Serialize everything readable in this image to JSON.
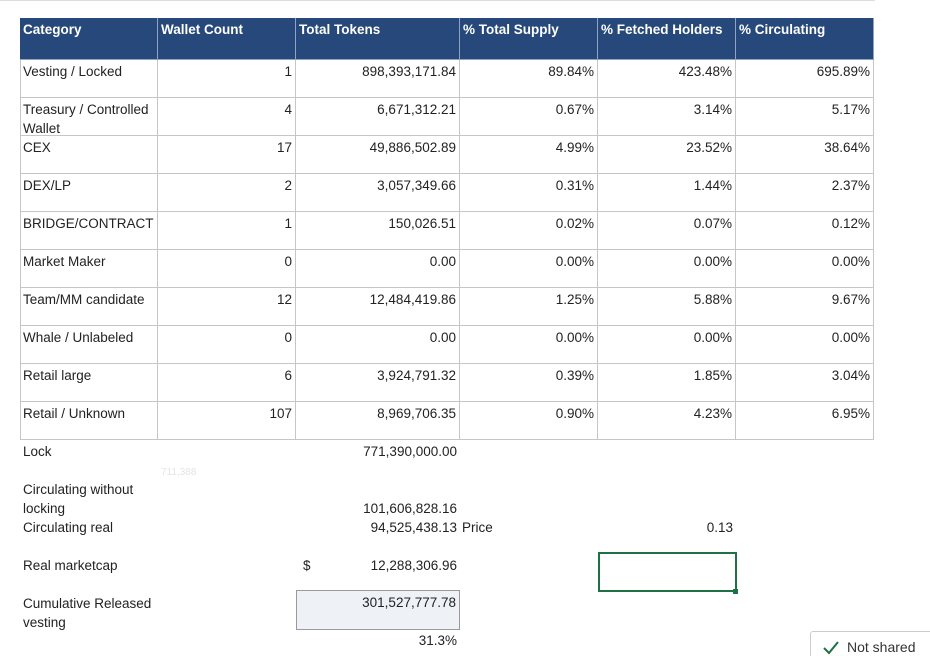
{
  "table": {
    "header": [
      "Category",
      "Wallet Count",
      "Total Tokens",
      "% Total Supply",
      "% Fetched Holders",
      "% Circulating"
    ],
    "rows": [
      [
        "Vesting / Locked",
        "1",
        "898,393,171.84",
        "89.84%",
        "423.48%",
        "695.89%"
      ],
      [
        "Treasury / Controlled Wallet",
        "4",
        "6,671,312.21",
        "0.67%",
        "3.14%",
        "5.17%"
      ],
      [
        "CEX",
        "17",
        "49,886,502.89",
        "4.99%",
        "23.52%",
        "38.64%"
      ],
      [
        "DEX/LP",
        "2",
        "3,057,349.66",
        "0.31%",
        "1.44%",
        "2.37%"
      ],
      [
        "BRIDGE/CONTRACT",
        "1",
        "150,026.51",
        "0.02%",
        "0.07%",
        "0.12%"
      ],
      [
        "Market Maker",
        "0",
        "0.00",
        "0.00%",
        "0.00%",
        "0.00%"
      ],
      [
        "Team/MM candidate",
        "12",
        "12,484,419.86",
        "1.25%",
        "5.88%",
        "9.67%"
      ],
      [
        "Whale / Unlabeled",
        "0",
        "0.00",
        "0.00%",
        "0.00%",
        "0.00%"
      ],
      [
        "Retail large",
        "6",
        "3,924,791.32",
        "0.39%",
        "1.85%",
        "3.04%"
      ],
      [
        "Retail / Unknown",
        "107",
        "8,969,706.35",
        "0.90%",
        "4.23%",
        "6.95%"
      ]
    ]
  },
  "summary": {
    "lock": {
      "label": "Lock",
      "value": "771,390,000.00",
      "ghost": "711,388"
    },
    "circulating_without_locking": {
      "label": "Circulating without locking",
      "value": "101,606,828.16"
    },
    "circulating_real": {
      "label": "Circulating real",
      "value": "94,525,438.13",
      "price_label": "Price",
      "price": "0.13"
    },
    "real_marketcap": {
      "label": "Real marketcap",
      "currency": "$",
      "value": "12,288,306.96"
    },
    "cumulative": {
      "label": "Cumulative Released vesting",
      "value": "301,527,777.78",
      "percent": "31.3%"
    }
  },
  "status": "Not shared"
}
